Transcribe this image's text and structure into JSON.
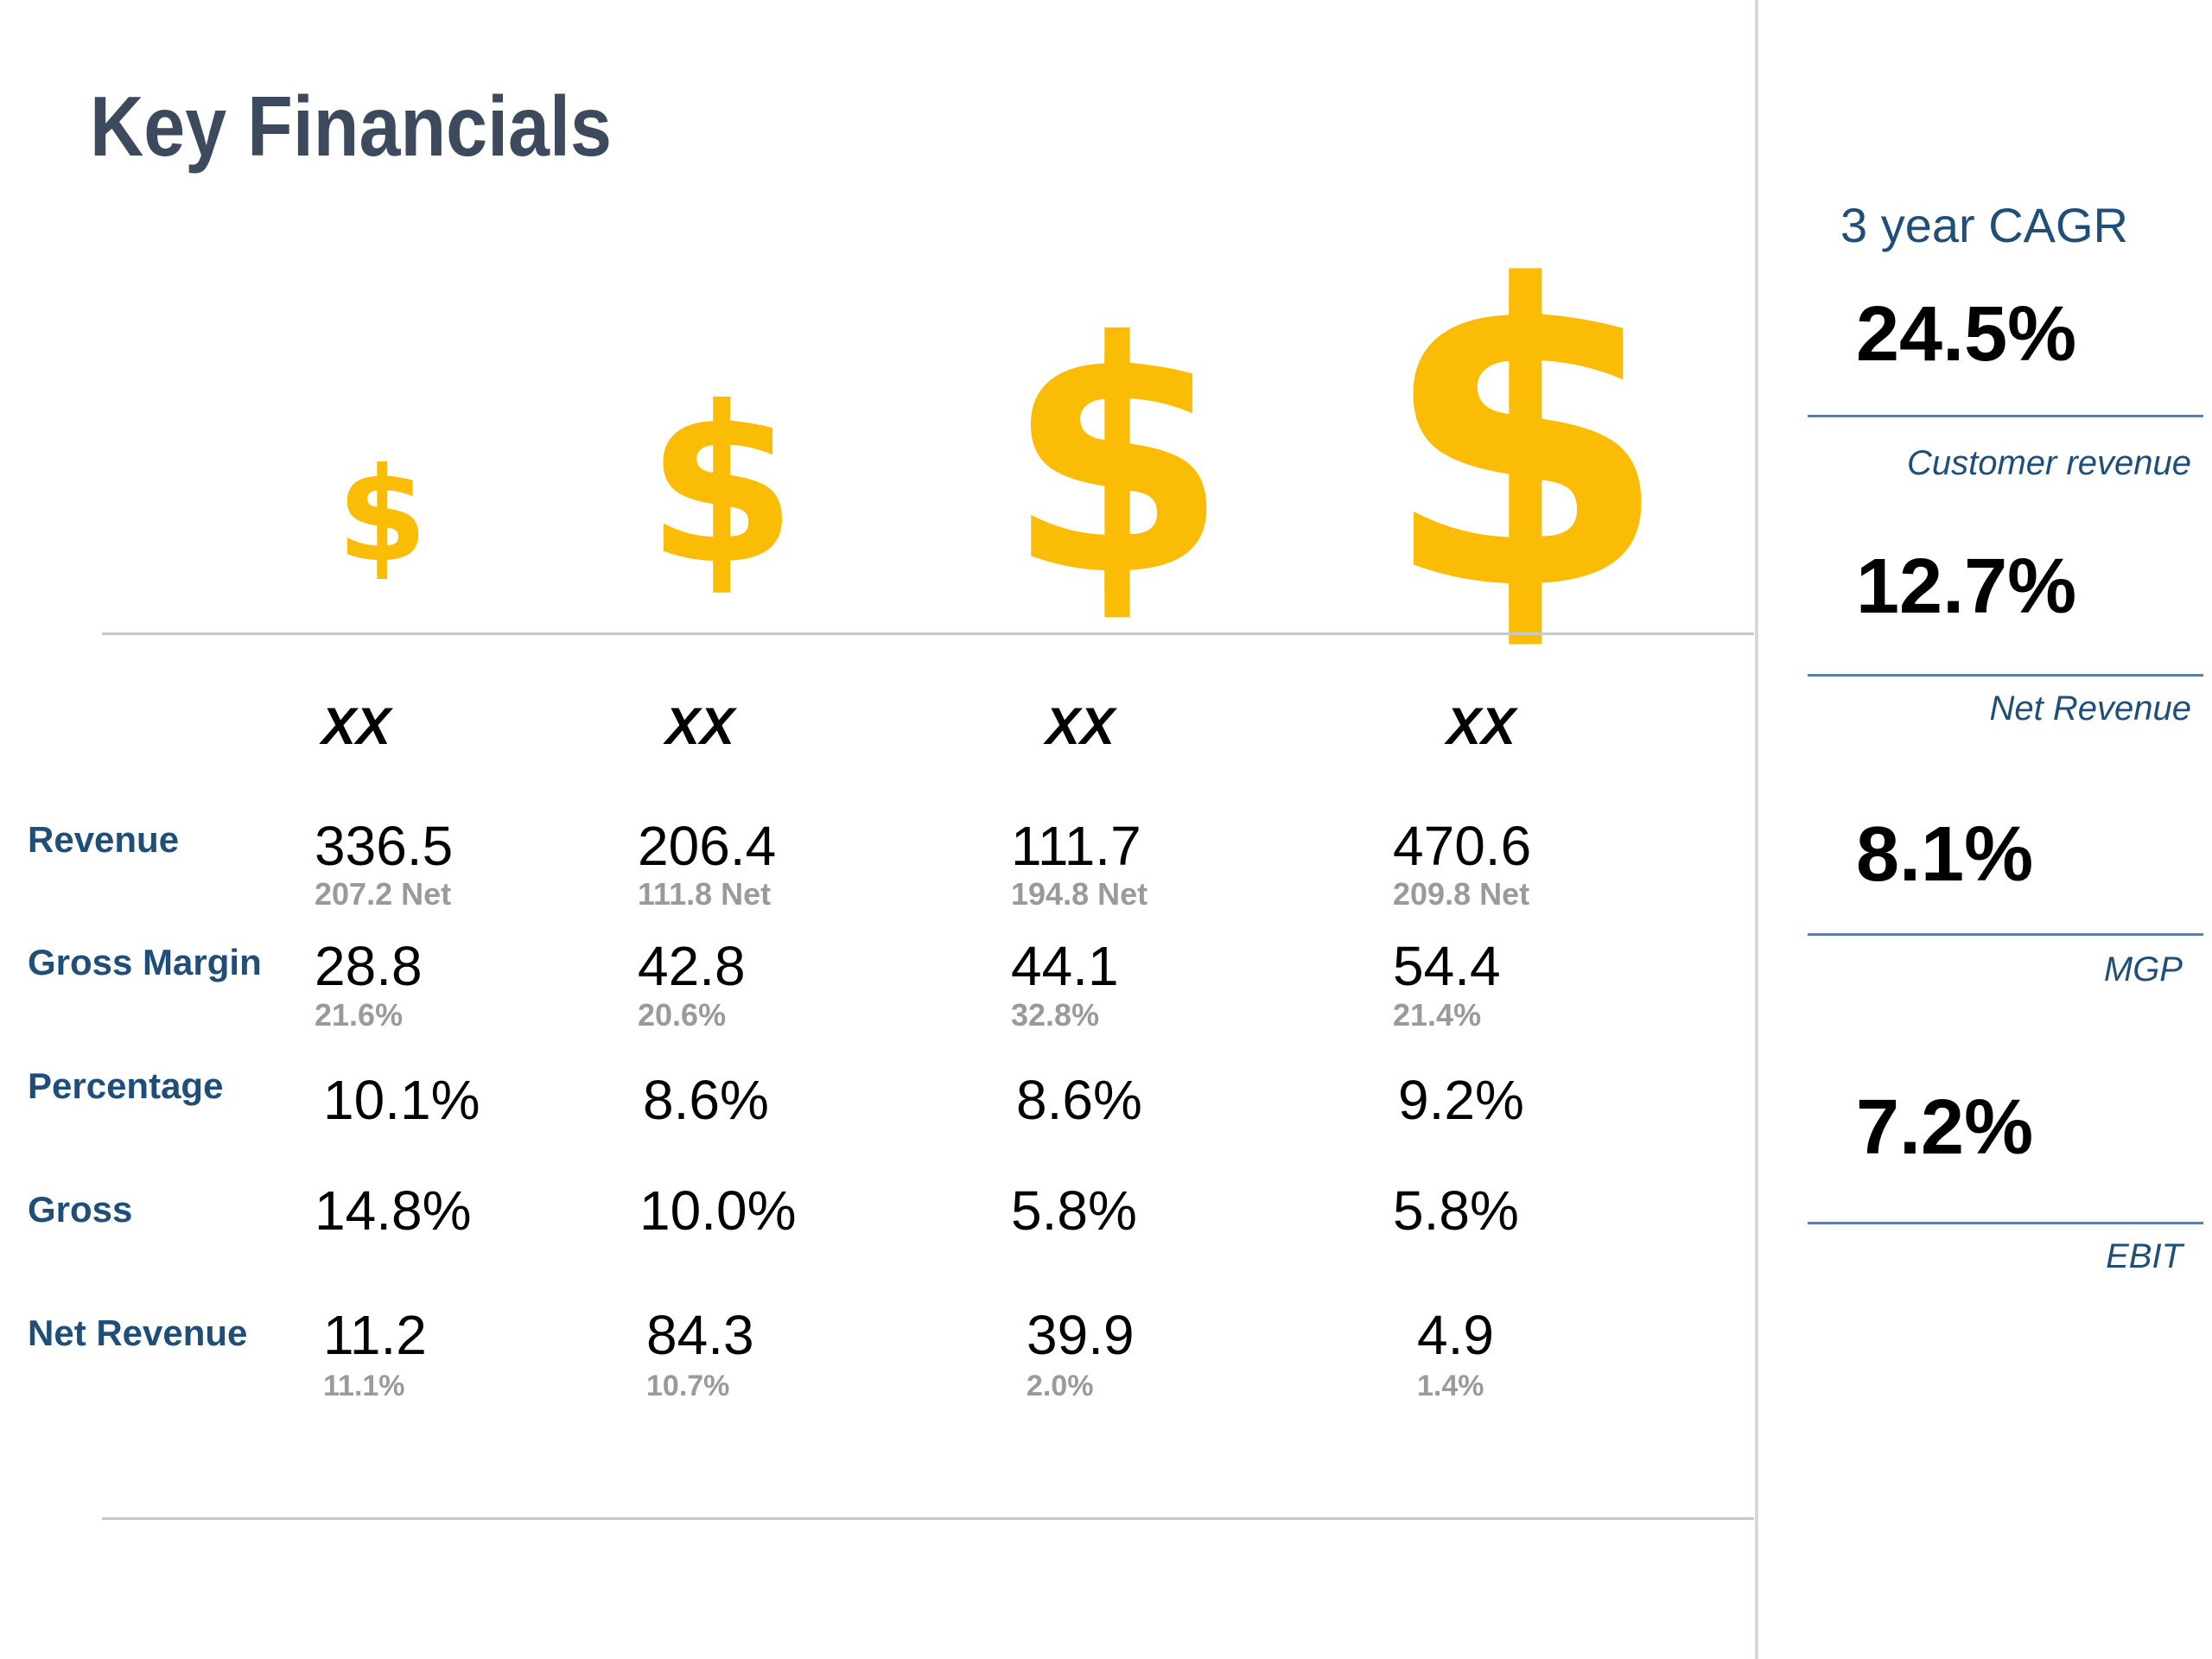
{
  "title": "Key Financials",
  "icons": [
    "dollar-sign-icon",
    "dollar-sign-icon",
    "dollar-sign-icon",
    "dollar-sign-icon"
  ],
  "colors": {
    "accent": "#fbbc05",
    "label": "#1f4e79",
    "title": "#3d4a5e",
    "muted": "#9a9a9a"
  },
  "columns": [
    {
      "year": "XX",
      "revenue": "336.5",
      "revenue_net": "207.2 Net",
      "gross_margin": "28.8",
      "gross_margin_pct": "21.6%",
      "percentage": "10.1%",
      "gross": "14.8%",
      "net_revenue": "11.2",
      "net_revenue_pct": "11.1%"
    },
    {
      "year": "XX",
      "revenue": "206.4",
      "revenue_net": "111.8 Net",
      "gross_margin": "42.8",
      "gross_margin_pct": "20.6%",
      "percentage": "8.6%",
      "gross": "10.0%",
      "net_revenue": "84.3",
      "net_revenue_pct": "10.7%"
    },
    {
      "year": "XX",
      "revenue": "111.7",
      "revenue_net": "194.8 Net",
      "gross_margin": "44.1",
      "gross_margin_pct": "32.8%",
      "percentage": "8.6%",
      "gross": "5.8%",
      "net_revenue": "39.9",
      "net_revenue_pct": "2.0%"
    },
    {
      "year": "XX",
      "revenue": "470.6",
      "revenue_net": "209.8 Net",
      "gross_margin": "54.4",
      "gross_margin_pct": "21.4%",
      "percentage": "9.2%",
      "gross": "5.8%",
      "net_revenue": "4.9",
      "net_revenue_pct": "1.4%"
    }
  ],
  "row_labels": {
    "revenue": "Revenue",
    "gross_margin": "Gross Margin",
    "percentage": "Percentage",
    "gross": "Gross",
    "net_revenue": "Net Revenue"
  },
  "cagr": {
    "title": "3 year CAGR",
    "items": [
      {
        "value": "24.5%",
        "label": "Customer revenue"
      },
      {
        "value": "12.7%",
        "label": "Net Revenue"
      },
      {
        "value": "8.1%",
        "label": "MGP"
      },
      {
        "value": "7.2%",
        "label": "EBIT"
      }
    ]
  }
}
